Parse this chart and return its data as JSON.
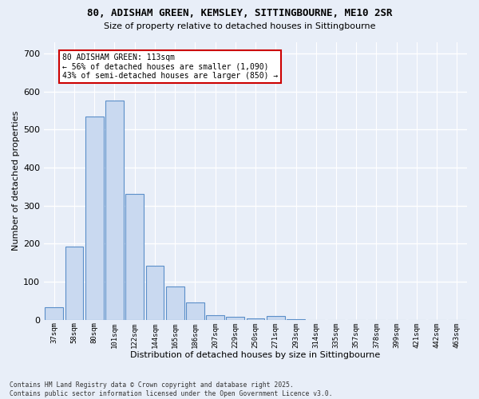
{
  "title_line1": "80, ADISHAM GREEN, KEMSLEY, SITTINGBOURNE, ME10 2SR",
  "title_line2": "Size of property relative to detached houses in Sittingbourne",
  "xlabel": "Distribution of detached houses by size in Sittingbourne",
  "ylabel": "Number of detached properties",
  "categories": [
    "37sqm",
    "58sqm",
    "80sqm",
    "101sqm",
    "122sqm",
    "144sqm",
    "165sqm",
    "186sqm",
    "207sqm",
    "229sqm",
    "250sqm",
    "271sqm",
    "293sqm",
    "314sqm",
    "335sqm",
    "357sqm",
    "378sqm",
    "399sqm",
    "421sqm",
    "442sqm",
    "463sqm"
  ],
  "values": [
    33,
    192,
    533,
    575,
    330,
    143,
    87,
    45,
    13,
    8,
    4,
    10,
    1,
    0,
    0,
    0,
    0,
    0,
    0,
    0,
    0
  ],
  "bar_color": "#c9d9f0",
  "bar_edge_color": "#5b8fc9",
  "annotation_text": "80 ADISHAM GREEN: 113sqm\n← 56% of detached houses are smaller (1,090)\n43% of semi-detached houses are larger (850) →",
  "annotation_box_facecolor": "#ffffff",
  "annotation_box_edgecolor": "#cc0000",
  "ylim": [
    0,
    730
  ],
  "yticks": [
    0,
    100,
    200,
    300,
    400,
    500,
    600,
    700
  ],
  "background_color": "#e8eef8",
  "grid_color": "#ffffff",
  "footer_line1": "Contains HM Land Registry data © Crown copyright and database right 2025.",
  "footer_line2": "Contains public sector information licensed under the Open Government Licence v3.0."
}
